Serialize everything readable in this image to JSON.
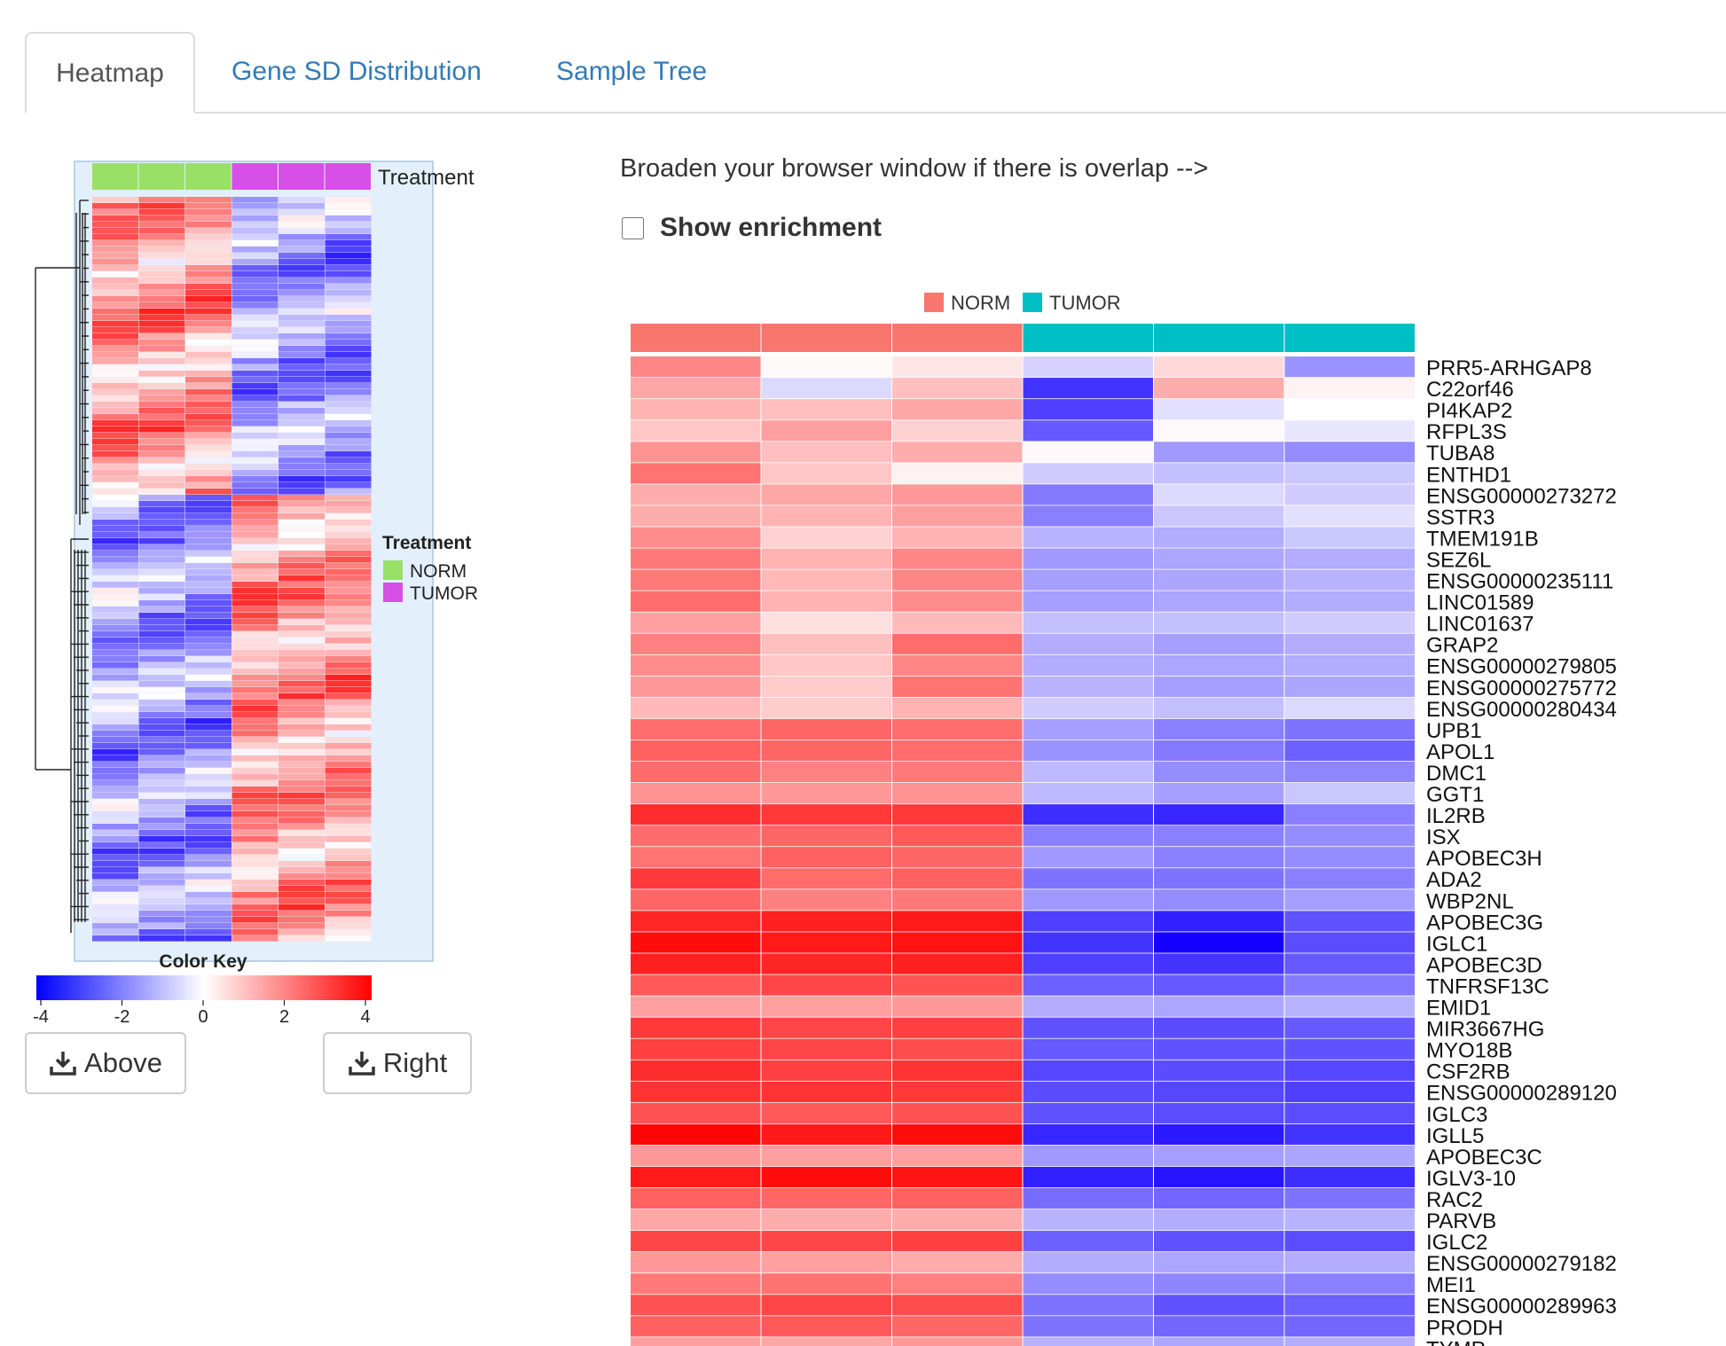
{
  "tabs": [
    {
      "label": "Heatmap",
      "active": true
    },
    {
      "label": "Gene SD Distribution",
      "active": false
    },
    {
      "label": "Sample Tree",
      "active": false
    }
  ],
  "mini_heatmap": {
    "annotation_label": "Treatment",
    "legend_title": "Treatment",
    "legend": [
      {
        "label": "NORM",
        "color": "#99e066"
      },
      {
        "label": "TUMOR",
        "color": "#d64fe6"
      }
    ],
    "color_key_title": "Color Key",
    "color_key_ticks": [
      "-4",
      "-2",
      "0",
      "2",
      "4"
    ],
    "color_low": "#0000ff",
    "color_high": "#ff0000"
  },
  "buttons": {
    "above": "Above",
    "right": "Right"
  },
  "main": {
    "hint": "Broaden your browser window if there is overlap -->",
    "enrichment_label": "Show enrichment",
    "legend": [
      {
        "label": "NORM",
        "color": "#f8766d"
      },
      {
        "label": "TUMOR",
        "color": "#00bfc4"
      }
    ]
  },
  "chart_data": {
    "type": "heatmap",
    "samples": [
      "NORM",
      "NORM",
      "NORM",
      "TUMOR",
      "TUMOR",
      "TUMOR"
    ],
    "genes": [
      "PRR5-ARHGAP8",
      "C22orf46",
      "PI4KAP2",
      "RFPL3S",
      "TUBA8",
      "ENTHD1",
      "ENSG00000273272",
      "SSTR3",
      "TMEM191B",
      "SEZ6L",
      "ENSG00000235111",
      "LINC01589",
      "LINC01637",
      "GRAP2",
      "ENSG00000279805",
      "ENSG00000275772",
      "ENSG00000280434",
      "UPB1",
      "APOL1",
      "DMC1",
      "GGT1",
      "IL2RB",
      "ISX",
      "APOBEC3H",
      "ADA2",
      "WBP2NL",
      "APOBEC3G",
      "IGLC1",
      "APOBEC3D",
      "TNFRSF13C",
      "EMID1",
      "MIR3667HG",
      "MYO18B",
      "CSF2RB",
      "ENSG00000289120",
      "IGLC3",
      "IGLL5",
      "APOBEC3C",
      "IGLV3-10",
      "RAC2",
      "PARVB",
      "IGLC2",
      "ENSG00000279182",
      "MEI1",
      "ENSG00000289963",
      "PRODH",
      "TYMP"
    ],
    "values": [
      [
        1.9,
        0.1,
        0.4,
        -0.7,
        0.6,
        -1.7
      ],
      [
        1.4,
        -0.6,
        1.0,
        -3.2,
        1.3,
        0.2
      ],
      [
        1.2,
        1.0,
        1.4,
        -3.0,
        -0.5,
        0.0
      ],
      [
        0.9,
        1.5,
        0.7,
        -2.6,
        0.1,
        -0.4
      ],
      [
        1.7,
        1.0,
        1.3,
        0.1,
        -1.6,
        -1.8
      ],
      [
        2.2,
        0.9,
        0.2,
        -0.8,
        -1.0,
        -0.9
      ],
      [
        1.3,
        1.4,
        1.6,
        -2.1,
        -0.6,
        -0.8
      ],
      [
        1.3,
        1.2,
        1.5,
        -2.0,
        -0.9,
        -0.5
      ],
      [
        1.8,
        0.7,
        1.2,
        -1.2,
        -1.3,
        -0.9
      ],
      [
        2.1,
        1.2,
        1.9,
        -1.6,
        -1.4,
        -1.3
      ],
      [
        2.1,
        1.1,
        1.9,
        -1.5,
        -1.4,
        -1.2
      ],
      [
        2.3,
        1.2,
        1.8,
        -1.5,
        -1.4,
        -1.3
      ],
      [
        1.5,
        0.5,
        1.1,
        -1.0,
        -1.0,
        -0.8
      ],
      [
        2.0,
        1.0,
        2.3,
        -1.3,
        -1.5,
        -1.3
      ],
      [
        1.8,
        0.9,
        1.9,
        -1.3,
        -1.4,
        -1.3
      ],
      [
        1.6,
        0.8,
        2.2,
        -1.2,
        -1.5,
        -1.4
      ],
      [
        1.1,
        0.8,
        1.2,
        -0.8,
        -1.0,
        -0.6
      ],
      [
        2.3,
        2.4,
        2.3,
        -1.5,
        -2.0,
        -2.2
      ],
      [
        2.5,
        2.4,
        2.3,
        -1.7,
        -2.1,
        -2.5
      ],
      [
        2.3,
        2.0,
        2.1,
        -1.1,
        -1.8,
        -1.9
      ],
      [
        1.7,
        1.6,
        1.7,
        -1.1,
        -1.5,
        -0.9
      ],
      [
        3.3,
        3.1,
        3.1,
        -3.3,
        -3.4,
        -2.0
      ],
      [
        2.3,
        2.4,
        2.6,
        -2.0,
        -2.0,
        -1.8
      ],
      [
        2.2,
        2.5,
        2.4,
        -1.6,
        -2.0,
        -1.8
      ],
      [
        3.1,
        2.3,
        2.5,
        -2.2,
        -2.2,
        -2.0
      ],
      [
        2.4,
        2.0,
        2.1,
        -1.6,
        -1.8,
        -1.5
      ],
      [
        3.4,
        3.5,
        3.6,
        -3.0,
        -3.5,
        -2.7
      ],
      [
        3.8,
        3.6,
        3.7,
        -3.2,
        -4.0,
        -2.8
      ],
      [
        3.5,
        3.4,
        3.5,
        -3.0,
        -3.2,
        -2.6
      ],
      [
        2.6,
        2.9,
        2.7,
        -2.5,
        -2.6,
        -2.1
      ],
      [
        1.5,
        1.5,
        1.6,
        -1.3,
        -1.4,
        -1.2
      ],
      [
        3.1,
        2.9,
        3.0,
        -2.7,
        -2.8,
        -2.6
      ],
      [
        3.0,
        2.9,
        2.8,
        -2.6,
        -2.7,
        -2.7
      ],
      [
        3.3,
        3.0,
        3.2,
        -2.9,
        -2.8,
        -2.9
      ],
      [
        3.2,
        3.2,
        3.1,
        -2.8,
        -2.9,
        -3.0
      ],
      [
        2.7,
        2.6,
        2.7,
        -2.7,
        -2.8,
        -2.8
      ],
      [
        3.9,
        3.6,
        3.8,
        -3.4,
        -3.6,
        -3.2
      ],
      [
        1.6,
        1.5,
        1.5,
        -1.6,
        -1.5,
        -1.4
      ],
      [
        3.6,
        3.8,
        3.7,
        -3.5,
        -3.7,
        -3.3
      ],
      [
        2.5,
        2.4,
        2.5,
        -2.3,
        -2.4,
        -2.2
      ],
      [
        1.4,
        1.3,
        1.3,
        -1.2,
        -1.3,
        -1.2
      ],
      [
        2.9,
        2.9,
        3.0,
        -2.5,
        -2.7,
        -2.8
      ],
      [
        1.6,
        1.5,
        1.3,
        -1.3,
        -1.4,
        -1.3
      ],
      [
        2.1,
        2.2,
        2.0,
        -1.8,
        -1.9,
        -2.0
      ],
      [
        2.7,
        2.9,
        2.8,
        -2.2,
        -2.7,
        -2.5
      ],
      [
        2.5,
        2.6,
        2.4,
        -2.2,
        -2.4,
        -2.4
      ],
      [
        1.5,
        1.4,
        1.6,
        -1.2,
        -1.4,
        -1.3
      ]
    ],
    "color_scale": {
      "min": -4,
      "mid": 0,
      "max": 4,
      "low": "#0000ff",
      "mid_color": "#ffffff",
      "high": "#ff0000"
    }
  }
}
